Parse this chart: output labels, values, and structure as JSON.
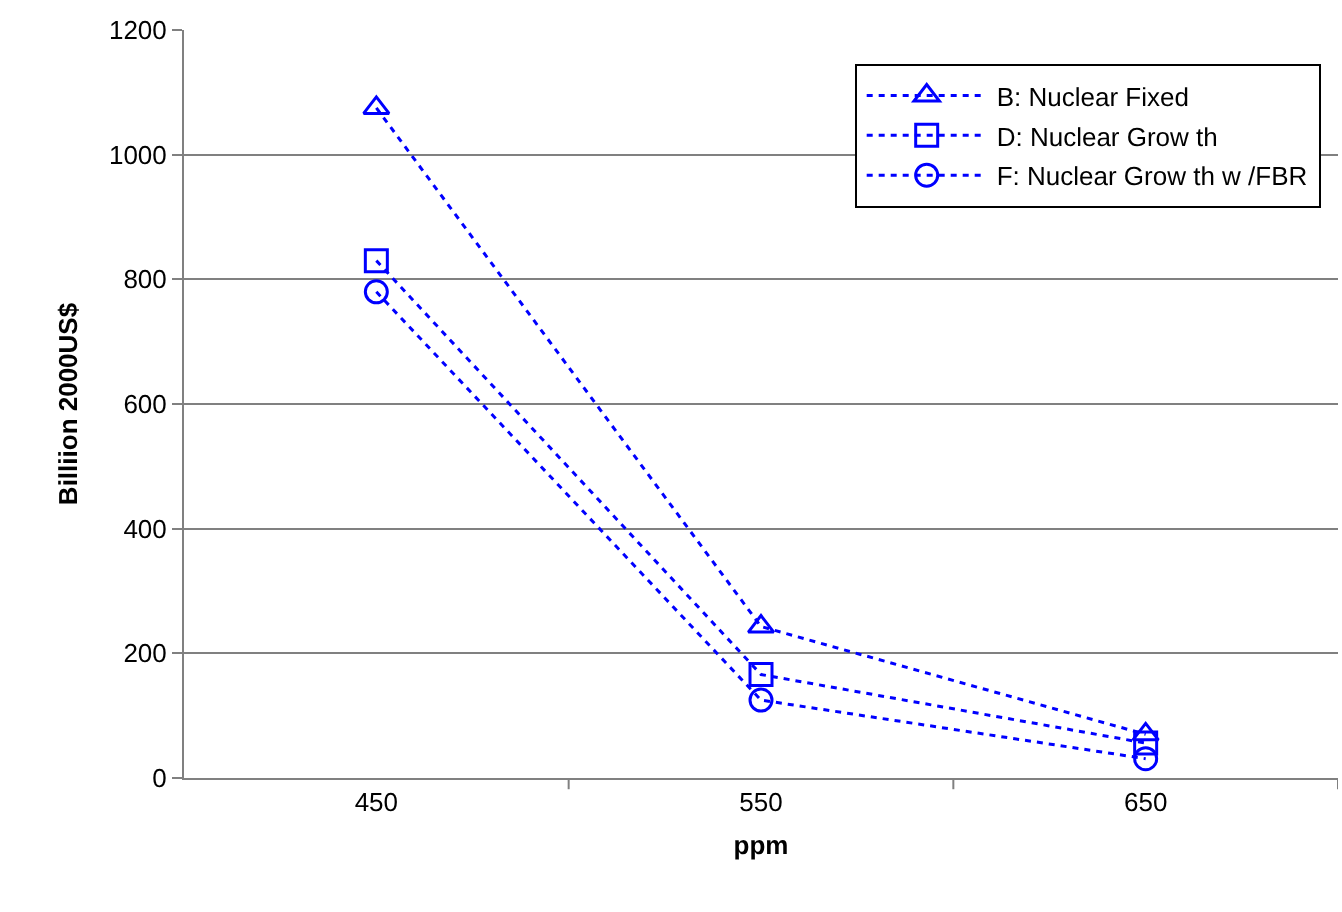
{
  "chart_data": {
    "type": "line",
    "xlabel": "ppm",
    "ylabel": "Billiion 2000US$",
    "categories": [
      "450",
      "550",
      "650"
    ],
    "series": [
      {
        "name": "B: Nuclear Fixed",
        "color": "#0000ff",
        "marker": "triangle",
        "values": [
          1075,
          243,
          70
        ]
      },
      {
        "name": "D: Nuclear Grow th",
        "color": "#0000ff",
        "marker": "square",
        "values": [
          830,
          166,
          56
        ]
      },
      {
        "name": "F: Nuclear Grow th w /FBR",
        "color": "#0000ff",
        "marker": "circle",
        "values": [
          780,
          125,
          31
        ]
      }
    ],
    "ylim": [
      0,
      1200
    ],
    "yticks": [
      0,
      200,
      400,
      600,
      800,
      1000,
      1200
    ],
    "grid": "y",
    "legend": "top right",
    "line_style": "dotted"
  }
}
